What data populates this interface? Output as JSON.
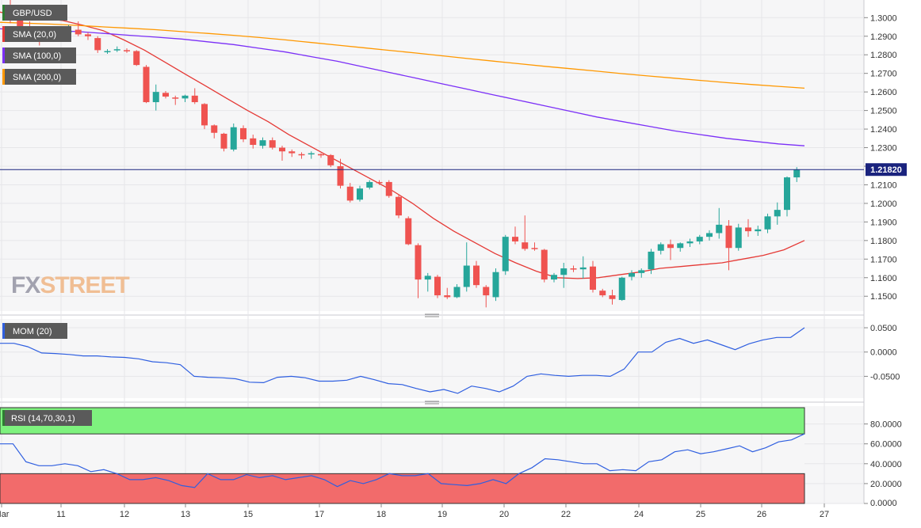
{
  "colors": {
    "bull": "#26a69a",
    "bear": "#ef5350",
    "sma20": "#e53935",
    "sma100": "#7b2ff7",
    "sma200": "#ff9800",
    "mom": "#2f5fe0",
    "rsi": "#2f5fe0",
    "price_line": "#1a237e",
    "overbought_fill": "#7ef27e",
    "oversold_fill": "#f26b6b",
    "panel_bg": "#f6f6f7",
    "grid": "#e6e6e9",
    "label_bg": "#5a5a5a",
    "price_tag_bg": "#1a237e",
    "watermark": "#9a9aa8"
  },
  "legend": {
    "symbol": "GBP/USD",
    "sma20": "SMA (20,0)",
    "sma100": "SMA (100,0)",
    "sma200": "SMA (200,0)",
    "mom": "MOM (20)",
    "rsi": "RSI (14,70,30,1)"
  },
  "watermark": {
    "part1": "FX",
    "part2": "STREET"
  },
  "current_price_label": "1.21820",
  "chart_data": [
    {
      "type": "candlestick",
      "title": "GBP/USD",
      "current_price": 1.2182,
      "ylim": [
        1.142,
        1.3095
      ],
      "yticks": [
        "1.3000",
        "1.2900",
        "1.2800",
        "1.2700",
        "1.2600",
        "1.2500",
        "1.2400",
        "1.2300",
        "1.2200",
        "1.2100",
        "1.2000",
        "1.1900",
        "1.1800",
        "1.1700",
        "1.1600",
        "1.1500"
      ],
      "x_ticks": [
        "Mar",
        "11",
        "12",
        "13",
        "15",
        "17",
        "18",
        "19",
        "20",
        "22",
        "24",
        "25",
        "26",
        "27"
      ],
      "candles": [
        {
          "o": 1.3035,
          "h": 1.3095,
          "l": 1.297,
          "c": 1.3
        },
        {
          "o": 1.299,
          "h": 1.304,
          "l": 1.293,
          "c": 1.295
        },
        {
          "o": 1.295,
          "h": 1.298,
          "l": 1.289,
          "c": 1.2925
        },
        {
          "o": 1.2925,
          "h": 1.295,
          "l": 1.285,
          "c": 1.2915
        },
        {
          "o": 1.2915,
          "h": 1.2945,
          "l": 1.288,
          "c": 1.2915
        },
        {
          "o": 1.291,
          "h": 1.2935,
          "l": 1.289,
          "c": 1.292
        },
        {
          "o": 1.292,
          "h": 1.296,
          "l": 1.29,
          "c": 1.293
        },
        {
          "o": 1.2935,
          "h": 1.298,
          "l": 1.29,
          "c": 1.291
        },
        {
          "o": 1.291,
          "h": 1.292,
          "l": 1.288,
          "c": 1.29
        },
        {
          "o": 1.289,
          "h": 1.29,
          "l": 1.281,
          "c": 1.2825
        },
        {
          "o": 1.2815,
          "h": 1.283,
          "l": 1.2805,
          "c": 1.282
        },
        {
          "o": 1.2825,
          "h": 1.2845,
          "l": 1.2815,
          "c": 1.283
        },
        {
          "o": 1.2825,
          "h": 1.2835,
          "l": 1.281,
          "c": 1.282
        },
        {
          "o": 1.282,
          "h": 1.2825,
          "l": 1.274,
          "c": 1.2745
        },
        {
          "o": 1.2735,
          "h": 1.2745,
          "l": 1.254,
          "c": 1.2545
        },
        {
          "o": 1.2545,
          "h": 1.264,
          "l": 1.25,
          "c": 1.26
        },
        {
          "o": 1.2595,
          "h": 1.2605,
          "l": 1.2565,
          "c": 1.2575
        },
        {
          "o": 1.257,
          "h": 1.258,
          "l": 1.253,
          "c": 1.2565
        },
        {
          "o": 1.2565,
          "h": 1.2585,
          "l": 1.2545,
          "c": 1.258
        },
        {
          "o": 1.258,
          "h": 1.262,
          "l": 1.2535,
          "c": 1.2545
        },
        {
          "o": 1.2535,
          "h": 1.254,
          "l": 1.24,
          "c": 1.242
        },
        {
          "o": 1.242,
          "h": 1.2425,
          "l": 1.235,
          "c": 1.238
        },
        {
          "o": 1.2375,
          "h": 1.238,
          "l": 1.228,
          "c": 1.2295
        },
        {
          "o": 1.229,
          "h": 1.243,
          "l": 1.228,
          "c": 1.241
        },
        {
          "o": 1.2405,
          "h": 1.242,
          "l": 1.233,
          "c": 1.2345
        },
        {
          "o": 1.235,
          "h": 1.237,
          "l": 1.2295,
          "c": 1.2315
        },
        {
          "o": 1.231,
          "h": 1.2355,
          "l": 1.2295,
          "c": 1.234
        },
        {
          "o": 1.234,
          "h": 1.2355,
          "l": 1.229,
          "c": 1.23
        },
        {
          "o": 1.23,
          "h": 1.231,
          "l": 1.223,
          "c": 1.228
        },
        {
          "o": 1.228,
          "h": 1.229,
          "l": 1.225,
          "c": 1.227
        },
        {
          "o": 1.2265,
          "h": 1.2275,
          "l": 1.224,
          "c": 1.226
        },
        {
          "o": 1.2265,
          "h": 1.228,
          "l": 1.224,
          "c": 1.227
        },
        {
          "o": 1.2265,
          "h": 1.227,
          "l": 1.2245,
          "c": 1.226
        },
        {
          "o": 1.226,
          "h": 1.2265,
          "l": 1.2195,
          "c": 1.2205
        },
        {
          "o": 1.22,
          "h": 1.224,
          "l": 1.208,
          "c": 1.2095
        },
        {
          "o": 1.209,
          "h": 1.211,
          "l": 1.2005,
          "c": 1.2015
        },
        {
          "o": 1.202,
          "h": 1.2095,
          "l": 1.201,
          "c": 1.208
        },
        {
          "o": 1.2085,
          "h": 1.2125,
          "l": 1.2075,
          "c": 1.2115
        },
        {
          "o": 1.2115,
          "h": 1.2125,
          "l": 1.21,
          "c": 1.211
        },
        {
          "o": 1.2115,
          "h": 1.2125,
          "l": 1.203,
          "c": 1.204
        },
        {
          "o": 1.2035,
          "h": 1.205,
          "l": 1.192,
          "c": 1.1935
        },
        {
          "o": 1.192,
          "h": 1.193,
          "l": 1.1775,
          "c": 1.178
        },
        {
          "o": 1.1775,
          "h": 1.1785,
          "l": 1.149,
          "c": 1.159
        },
        {
          "o": 1.159,
          "h": 1.1625,
          "l": 1.1525,
          "c": 1.161
        },
        {
          "o": 1.1605,
          "h": 1.1615,
          "l": 1.149,
          "c": 1.1505
        },
        {
          "o": 1.1505,
          "h": 1.1545,
          "l": 1.1485,
          "c": 1.1495
        },
        {
          "o": 1.1495,
          "h": 1.1565,
          "l": 1.149,
          "c": 1.155
        },
        {
          "o": 1.155,
          "h": 1.179,
          "l": 1.1525,
          "c": 1.1665
        },
        {
          "o": 1.1665,
          "h": 1.169,
          "l": 1.1545,
          "c": 1.156
        },
        {
          "o": 1.155,
          "h": 1.156,
          "l": 1.144,
          "c": 1.1505
        },
        {
          "o": 1.1495,
          "h": 1.165,
          "l": 1.1475,
          "c": 1.163
        },
        {
          "o": 1.1635,
          "h": 1.183,
          "l": 1.1615,
          "c": 1.182
        },
        {
          "o": 1.182,
          "h": 1.1875,
          "l": 1.178,
          "c": 1.1795
        },
        {
          "o": 1.179,
          "h": 1.1935,
          "l": 1.1745,
          "c": 1.1755
        },
        {
          "o": 1.176,
          "h": 1.179,
          "l": 1.1745,
          "c": 1.1755
        },
        {
          "o": 1.175,
          "h": 1.1755,
          "l": 1.1575,
          "c": 1.159
        },
        {
          "o": 1.159,
          "h": 1.1625,
          "l": 1.1575,
          "c": 1.1615
        },
        {
          "o": 1.1615,
          "h": 1.168,
          "l": 1.1545,
          "c": 1.165
        },
        {
          "o": 1.165,
          "h": 1.1665,
          "l": 1.163,
          "c": 1.1645
        },
        {
          "o": 1.1645,
          "h": 1.1715,
          "l": 1.1595,
          "c": 1.1655
        },
        {
          "o": 1.166,
          "h": 1.169,
          "l": 1.152,
          "c": 1.1535
        },
        {
          "o": 1.153,
          "h": 1.154,
          "l": 1.1495,
          "c": 1.1505
        },
        {
          "o": 1.1505,
          "h": 1.1535,
          "l": 1.1455,
          "c": 1.1485
        },
        {
          "o": 1.148,
          "h": 1.1605,
          "l": 1.1475,
          "c": 1.16
        },
        {
          "o": 1.1605,
          "h": 1.164,
          "l": 1.1585,
          "c": 1.1625
        },
        {
          "o": 1.1625,
          "h": 1.165,
          "l": 1.16,
          "c": 1.164
        },
        {
          "o": 1.1645,
          "h": 1.1755,
          "l": 1.162,
          "c": 1.174
        },
        {
          "o": 1.1745,
          "h": 1.179,
          "l": 1.1725,
          "c": 1.178
        },
        {
          "o": 1.178,
          "h": 1.1805,
          "l": 1.1695,
          "c": 1.176
        },
        {
          "o": 1.176,
          "h": 1.179,
          "l": 1.174,
          "c": 1.1785
        },
        {
          "o": 1.1785,
          "h": 1.181,
          "l": 1.1765,
          "c": 1.1795
        },
        {
          "o": 1.1795,
          "h": 1.183,
          "l": 1.178,
          "c": 1.182
        },
        {
          "o": 1.182,
          "h": 1.1855,
          "l": 1.18,
          "c": 1.184
        },
        {
          "o": 1.184,
          "h": 1.1975,
          "l": 1.181,
          "c": 1.1885
        },
        {
          "o": 1.188,
          "h": 1.191,
          "l": 1.164,
          "c": 1.176
        },
        {
          "o": 1.176,
          "h": 1.189,
          "l": 1.1745,
          "c": 1.187
        },
        {
          "o": 1.187,
          "h": 1.1915,
          "l": 1.182,
          "c": 1.185
        },
        {
          "o": 1.185,
          "h": 1.188,
          "l": 1.1825,
          "c": 1.186
        },
        {
          "o": 1.186,
          "h": 1.1945,
          "l": 1.184,
          "c": 1.193
        },
        {
          "o": 1.193,
          "h": 1.2005,
          "l": 1.1885,
          "c": 1.1965
        },
        {
          "o": 1.1965,
          "h": 1.2145,
          "l": 1.193,
          "c": 1.214
        },
        {
          "o": 1.214,
          "h": 1.2195,
          "l": 1.2115,
          "c": 1.2182
        }
      ],
      "series": [
        {
          "name": "SMA (20,0)",
          "values": [
            1.303,
            1.301,
            1.3,
            1.2985,
            1.296,
            1.293,
            1.288,
            1.2825,
            1.276,
            1.2695,
            1.263,
            1.2565,
            1.25,
            1.244,
            1.237,
            1.231,
            1.225,
            1.219,
            1.213,
            1.207,
            1.2,
            1.192,
            1.185,
            1.179,
            1.173,
            1.168,
            1.1635,
            1.16,
            1.1595,
            1.16,
            1.1615,
            1.163,
            1.165,
            1.166,
            1.167,
            1.168,
            1.17,
            1.172,
            1.175,
            1.18
          ]
        },
        {
          "name": "SMA (100,0)",
          "values": [
            1.294,
            1.2935,
            1.293,
            1.2925,
            1.2915,
            1.2905,
            1.2895,
            1.2885,
            1.287,
            1.2855,
            1.2835,
            1.2815,
            1.279,
            1.2765,
            1.2735,
            1.2705,
            1.2675,
            1.2645,
            1.2615,
            1.2585,
            1.2555,
            1.2525,
            1.2495,
            1.2465,
            1.244,
            1.2415,
            1.239,
            1.237,
            1.235,
            1.2335,
            1.232,
            1.231
          ]
        },
        {
          "name": "SMA (200,0)",
          "values": [
            1.2975,
            1.297,
            1.2965,
            1.2958,
            1.295,
            1.2943,
            1.2935,
            1.2925,
            1.2915,
            1.2905,
            1.2893,
            1.288,
            1.2866,
            1.2852,
            1.2838,
            1.2824,
            1.281,
            1.2795,
            1.278,
            1.2766,
            1.2752,
            1.2738,
            1.2725,
            1.2712,
            1.2698,
            1.2686,
            1.2674,
            1.2662,
            1.265,
            1.264,
            1.263,
            1.262
          ]
        }
      ]
    },
    {
      "type": "line",
      "title": "MOM (20)",
      "ylim": [
        -0.095,
        0.068
      ],
      "yticks": [
        "0.0500",
        "0.0000",
        "-0.0500"
      ],
      "series": [
        {
          "name": "MOM (20)",
          "values": [
            0.018,
            0.018,
            0.011,
            -0.002,
            -0.003,
            -0.005,
            -0.008,
            -0.008,
            -0.01,
            -0.011,
            -0.014,
            -0.02,
            -0.022,
            -0.026,
            -0.05,
            -0.052,
            -0.053,
            -0.055,
            -0.062,
            -0.063,
            -0.052,
            -0.05,
            -0.053,
            -0.06,
            -0.06,
            -0.058,
            -0.05,
            -0.057,
            -0.065,
            -0.067,
            -0.075,
            -0.082,
            -0.077,
            -0.085,
            -0.07,
            -0.075,
            -0.082,
            -0.07,
            -0.05,
            -0.045,
            -0.048,
            -0.05,
            -0.048,
            -0.048,
            -0.05,
            -0.035,
            0.0,
            0.0,
            0.02,
            0.028,
            0.018,
            0.025,
            0.015,
            0.005,
            0.017,
            0.025,
            0.03,
            0.03,
            0.05
          ]
        }
      ]
    },
    {
      "type": "line",
      "title": "RSI (14,70,30,1)",
      "ylim": [
        0,
        98
      ],
      "yticks": [
        "80.0000",
        "60.0000",
        "40.0000",
        "20.0000",
        "0.0000"
      ],
      "overbought": 70,
      "oversold": 30,
      "series": [
        {
          "name": "RSI (14,70,30,1)",
          "values": [
            60,
            60,
            42,
            38,
            38,
            40,
            38,
            32,
            34,
            30,
            24,
            24,
            26,
            23,
            18,
            16,
            30,
            24,
            24,
            29,
            26,
            28,
            24,
            26,
            28,
            24,
            17,
            23,
            20,
            24,
            30,
            28,
            28,
            30,
            20,
            19,
            18,
            20,
            24,
            20,
            30,
            36,
            45,
            44,
            42,
            40,
            40,
            33,
            34,
            33,
            42,
            44,
            52,
            54,
            50,
            52,
            55,
            58,
            52,
            56,
            62,
            64,
            70
          ]
        }
      ]
    }
  ]
}
